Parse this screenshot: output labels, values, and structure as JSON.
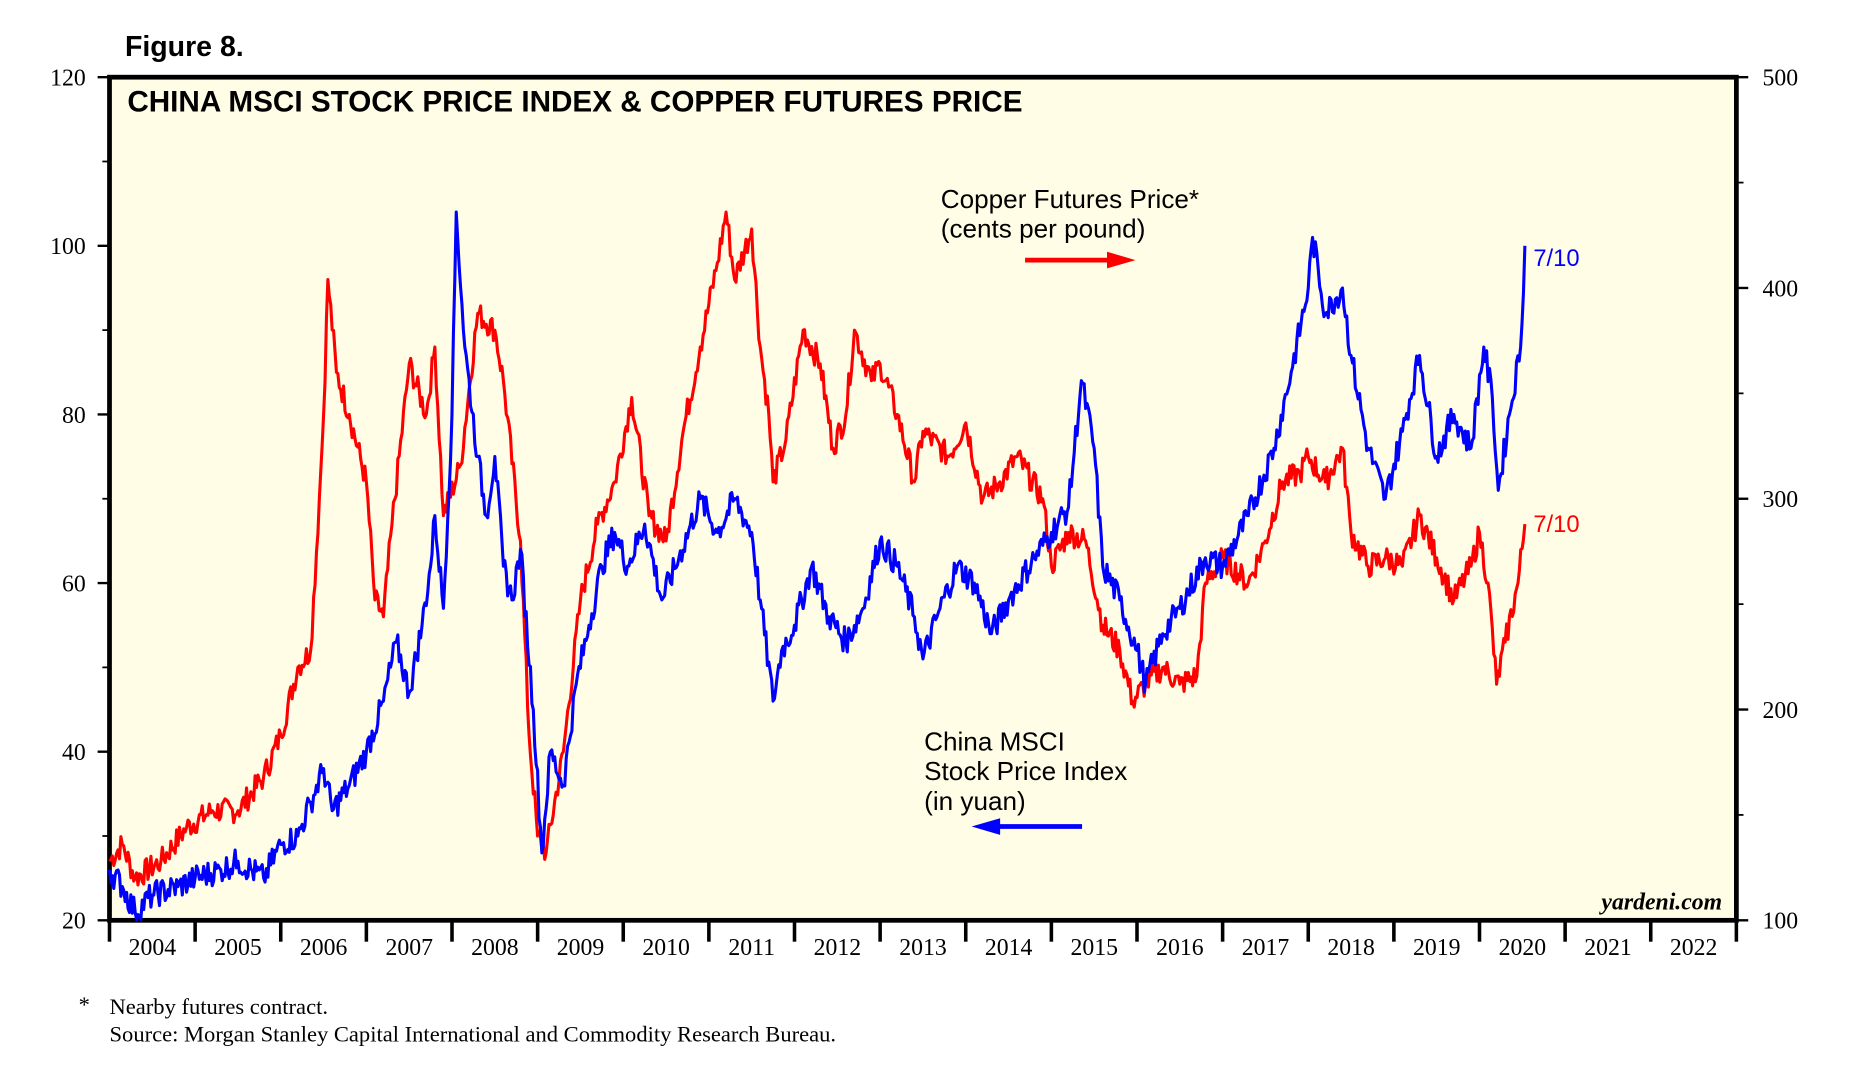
{
  "figure_label": "Figure 8.",
  "chart_data": {
    "type": "line",
    "title": "CHINA MSCI STOCK PRICE INDEX & COPPER FUTURES PRICE",
    "left_axis": {
      "range": [
        20,
        120
      ],
      "ticks": [
        "20",
        "40",
        "60",
        "80",
        "100",
        "120"
      ]
    },
    "right_axis": {
      "range": [
        100,
        500
      ],
      "ticks": [
        "100",
        "200",
        "300",
        "400",
        "500"
      ]
    },
    "x_range": [
      2004,
      2023
    ],
    "x_ticks": [
      "2004",
      "2005",
      "2006",
      "2007",
      "2008",
      "2009",
      "2010",
      "2011",
      "2012",
      "2013",
      "2014",
      "2015",
      "2016",
      "2017",
      "2018",
      "2019",
      "2020",
      "2021",
      "2022"
    ],
    "grid": false,
    "background": "#fffde6",
    "series": [
      {
        "name": "China MSCI Stock Price Index (in yuan)",
        "axis": "left",
        "color": "#0000ff",
        "end_label": "7/10",
        "legend": [
          "China MSCI",
          "Stock Price Index",
          "(in yuan)"
        ],
        "points": [
          [
            2004.0,
            26
          ],
          [
            2004.15,
            24
          ],
          [
            2004.3,
            21
          ],
          [
            2004.5,
            23
          ],
          [
            2004.8,
            24
          ],
          [
            2005.0,
            25
          ],
          [
            2005.3,
            26
          ],
          [
            2005.5,
            27
          ],
          [
            2005.8,
            25
          ],
          [
            2006.0,
            29
          ],
          [
            2006.2,
            30
          ],
          [
            2006.35,
            34
          ],
          [
            2006.5,
            38
          ],
          [
            2006.6,
            33
          ],
          [
            2006.8,
            36
          ],
          [
            2007.0,
            40
          ],
          [
            2007.2,
            46
          ],
          [
            2007.35,
            53
          ],
          [
            2007.5,
            47
          ],
          [
            2007.65,
            55
          ],
          [
            2007.75,
            62
          ],
          [
            2007.8,
            68
          ],
          [
            2007.9,
            57
          ],
          [
            2008.0,
            80
          ],
          [
            2008.05,
            104
          ],
          [
            2008.15,
            88
          ],
          [
            2008.3,
            75
          ],
          [
            2008.4,
            68
          ],
          [
            2008.5,
            75
          ],
          [
            2008.6,
            62
          ],
          [
            2008.7,
            58
          ],
          [
            2008.8,
            64
          ],
          [
            2008.95,
            45
          ],
          [
            2009.05,
            28
          ],
          [
            2009.15,
            40
          ],
          [
            2009.3,
            36
          ],
          [
            2009.45,
            48
          ],
          [
            2009.6,
            55
          ],
          [
            2009.75,
            62
          ],
          [
            2009.9,
            66
          ],
          [
            2010.05,
            62
          ],
          [
            2010.25,
            67
          ],
          [
            2010.45,
            58
          ],
          [
            2010.65,
            63
          ],
          [
            2010.9,
            70
          ],
          [
            2011.1,
            66
          ],
          [
            2011.3,
            70
          ],
          [
            2011.5,
            66
          ],
          [
            2011.6,
            58
          ],
          [
            2011.75,
            46
          ],
          [
            2011.85,
            52
          ],
          [
            2012.0,
            55
          ],
          [
            2012.2,
            62
          ],
          [
            2012.4,
            56
          ],
          [
            2012.6,
            53
          ],
          [
            2012.8,
            57
          ],
          [
            2013.0,
            65
          ],
          [
            2013.2,
            62
          ],
          [
            2013.4,
            56
          ],
          [
            2013.5,
            51
          ],
          [
            2013.7,
            57
          ],
          [
            2013.9,
            62
          ],
          [
            2014.1,
            60
          ],
          [
            2014.3,
            54
          ],
          [
            2014.5,
            58
          ],
          [
            2014.8,
            63
          ],
          [
            2015.0,
            66
          ],
          [
            2015.2,
            69
          ],
          [
            2015.35,
            84
          ],
          [
            2015.5,
            76
          ],
          [
            2015.6,
            62
          ],
          [
            2015.8,
            58
          ],
          [
            2016.0,
            52
          ],
          [
            2016.1,
            48
          ],
          [
            2016.3,
            54
          ],
          [
            2016.5,
            57
          ],
          [
            2016.8,
            63
          ],
          [
            2017.0,
            62
          ],
          [
            2017.3,
            68
          ],
          [
            2017.6,
            76
          ],
          [
            2017.8,
            85
          ],
          [
            2018.0,
            95
          ],
          [
            2018.05,
            101
          ],
          [
            2018.2,
            92
          ],
          [
            2018.4,
            95
          ],
          [
            2018.5,
            87
          ],
          [
            2018.7,
            76
          ],
          [
            2018.9,
            70
          ],
          [
            2019.1,
            78
          ],
          [
            2019.3,
            87
          ],
          [
            2019.5,
            75
          ],
          [
            2019.7,
            80
          ],
          [
            2019.9,
            76
          ],
          [
            2020.05,
            88
          ],
          [
            2020.15,
            82
          ],
          [
            2020.22,
            71
          ],
          [
            2020.35,
            80
          ],
          [
            2020.48,
            88
          ],
          [
            2020.53,
            100
          ]
        ]
      },
      {
        "name": "Copper Futures Price* (cents per pound)",
        "axis": "right",
        "color": "#ff0000",
        "end_label": "7/10",
        "legend": [
          "Copper Futures Price*",
          "(cents per pound)"
        ],
        "points": [
          [
            2004.0,
            128
          ],
          [
            2004.15,
            136
          ],
          [
            2004.3,
            120
          ],
          [
            2004.6,
            128
          ],
          [
            2004.9,
            144
          ],
          [
            2005.2,
            152
          ],
          [
            2005.5,
            152
          ],
          [
            2005.8,
            168
          ],
          [
            2006.0,
            188
          ],
          [
            2006.2,
            220
          ],
          [
            2006.35,
            228
          ],
          [
            2006.45,
            300
          ],
          [
            2006.5,
            340
          ],
          [
            2006.55,
            404
          ],
          [
            2006.65,
            360
          ],
          [
            2006.8,
            340
          ],
          [
            2007.0,
            308
          ],
          [
            2007.1,
            252
          ],
          [
            2007.2,
            244
          ],
          [
            2007.3,
            288
          ],
          [
            2007.5,
            364
          ],
          [
            2007.7,
            340
          ],
          [
            2007.8,
            372
          ],
          [
            2007.9,
            292
          ],
          [
            2008.1,
            316
          ],
          [
            2008.3,
            388
          ],
          [
            2008.5,
            380
          ],
          [
            2008.6,
            356
          ],
          [
            2008.8,
            280
          ],
          [
            2008.9,
            188
          ],
          [
            2009.0,
            140
          ],
          [
            2009.1,
            132
          ],
          [
            2009.3,
            180
          ],
          [
            2009.5,
            252
          ],
          [
            2009.7,
            288
          ],
          [
            2009.9,
            308
          ],
          [
            2010.1,
            348
          ],
          [
            2010.3,
            292
          ],
          [
            2010.5,
            280
          ],
          [
            2010.7,
            332
          ],
          [
            2010.9,
            372
          ],
          [
            2011.1,
            412
          ],
          [
            2011.2,
            436
          ],
          [
            2011.3,
            404
          ],
          [
            2011.5,
            428
          ],
          [
            2011.6,
            372
          ],
          [
            2011.7,
            340
          ],
          [
            2011.75,
            308
          ],
          [
            2011.9,
            328
          ],
          [
            2012.1,
            380
          ],
          [
            2012.3,
            364
          ],
          [
            2012.45,
            324
          ],
          [
            2012.6,
            340
          ],
          [
            2012.7,
            380
          ],
          [
            2012.9,
            356
          ],
          [
            2013.0,
            364
          ],
          [
            2013.2,
            340
          ],
          [
            2013.4,
            308
          ],
          [
            2013.5,
            332
          ],
          [
            2013.8,
            320
          ],
          [
            2014.0,
            336
          ],
          [
            2014.2,
            300
          ],
          [
            2014.4,
            308
          ],
          [
            2014.6,
            320
          ],
          [
            2014.9,
            300
          ],
          [
            2015.0,
            268
          ],
          [
            2015.2,
            284
          ],
          [
            2015.4,
            280
          ],
          [
            2015.6,
            240
          ],
          [
            2015.8,
            228
          ],
          [
            2015.95,
            204
          ],
          [
            2016.1,
            212
          ],
          [
            2016.3,
            220
          ],
          [
            2016.5,
            212
          ],
          [
            2016.7,
            216
          ],
          [
            2016.8,
            260
          ],
          [
            2017.0,
            272
          ],
          [
            2017.3,
            260
          ],
          [
            2017.5,
            280
          ],
          [
            2017.7,
            308
          ],
          [
            2017.9,
            312
          ],
          [
            2018.0,
            320
          ],
          [
            2018.2,
            308
          ],
          [
            2018.4,
            324
          ],
          [
            2018.5,
            284
          ],
          [
            2018.7,
            268
          ],
          [
            2018.9,
            272
          ],
          [
            2019.1,
            268
          ],
          [
            2019.3,
            292
          ],
          [
            2019.5,
            272
          ],
          [
            2019.7,
            252
          ],
          [
            2019.9,
            268
          ],
          [
            2020.0,
            284
          ],
          [
            2020.1,
            260
          ],
          [
            2020.2,
            212
          ],
          [
            2020.3,
            232
          ],
          [
            2020.45,
            260
          ],
          [
            2020.53,
            288
          ]
        ]
      }
    ],
    "watermark": "yardeni.com"
  },
  "footnotes": {
    "marker": "*",
    "note": "Nearby futures contract.",
    "source": "Source: Morgan Stanley Capital International and Commodity Research Bureau."
  }
}
